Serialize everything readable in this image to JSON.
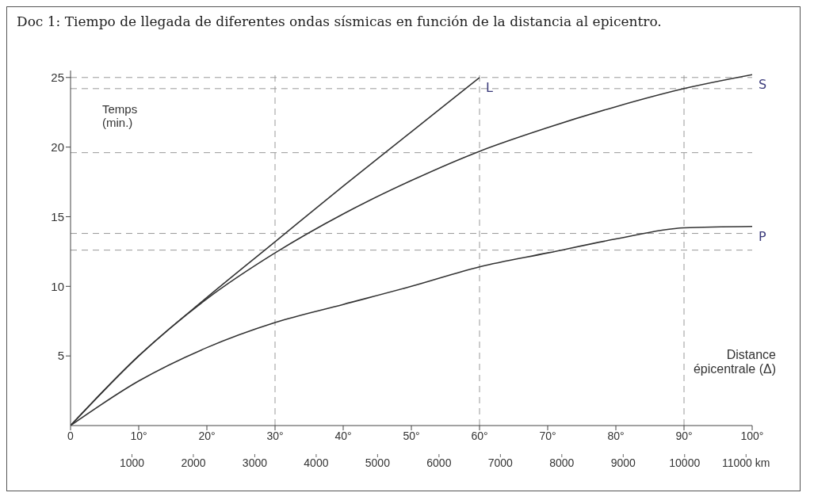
{
  "chart_data": {
    "type": "line",
    "title": "Doc 1: Tiempo de llegada de diferentes ondas sísmicas en función de la distancia al epicentro.",
    "ylabel": "Temps (min.)",
    "xlabel": "Distance épicentrale (Δ)",
    "x": [
      0,
      10,
      20,
      30,
      40,
      50,
      60,
      70,
      80,
      90,
      100
    ],
    "series": [
      {
        "name": "L",
        "color": "#333333",
        "x": [
          0,
          10,
          20,
          30,
          40,
          50,
          60
        ],
        "values": [
          0,
          5.0,
          9.2,
          13.2,
          17.2,
          21.1,
          25
        ]
      },
      {
        "name": "S",
        "color": "#333333",
        "values": [
          0,
          5.0,
          9.1,
          12.4,
          15.2,
          17.6,
          19.7,
          21.4,
          22.9,
          24.2,
          25.2
        ]
      },
      {
        "name": "P",
        "color": "#333333",
        "values": [
          0,
          3.2,
          5.6,
          7.4,
          8.7,
          10,
          11.4,
          12.4,
          13.4,
          14.2,
          14.3
        ]
      }
    ],
    "xlim": [
      0,
      100
    ],
    "xticks": [
      0,
      {
        "value": 10,
        "label": "10°"
      },
      {
        "value": 20,
        "label": "20°"
      },
      {
        "value": 30,
        "label": "30°"
      },
      {
        "value": 40,
        "label": "40°"
      },
      {
        "value": 50,
        "label": "50°"
      },
      {
        "value": 60,
        "label": "60°"
      },
      {
        "value": 70,
        "label": "70°"
      },
      {
        "value": 80,
        "label": "80°"
      },
      {
        "value": 90,
        "label": "90°"
      },
      {
        "value": 100,
        "label": "100°"
      }
    ],
    "x2lim": [
      0,
      11100
    ],
    "x2ticks": [
      1000,
      2000,
      3000,
      4000,
      5000,
      6000,
      7000,
      8000,
      9000,
      10000,
      {
        "value": 11000,
        "label": "11000 km"
      }
    ],
    "ylim": [
      0,
      25.5
    ],
    "yticks": [
      5,
      10,
      15,
      20,
      25
    ],
    "ref_lines": [
      {
        "axis": "x",
        "value": 30,
        "line_style": "dashed",
        "color": "#999999"
      },
      {
        "axis": "x",
        "value": 60,
        "line_style": "dashed",
        "color": "#999999"
      },
      {
        "axis": "x",
        "value": 90,
        "line_style": "dashed",
        "color": "#999999"
      },
      {
        "axis": "y",
        "value": 25,
        "line_style": "dashed",
        "color": "#999999"
      },
      {
        "axis": "y",
        "value": 24.2,
        "line_style": "dashed",
        "color": "#999999"
      },
      {
        "axis": "y",
        "value": 19.6,
        "line_style": "dashed",
        "color": "#999999"
      },
      {
        "axis": "y",
        "value": 13.8,
        "line_style": "dashed",
        "color": "#999999"
      },
      {
        "axis": "y",
        "value": 12.6,
        "line_style": "dashed",
        "color": "#999999"
      }
    ],
    "grid": false,
    "legend": false,
    "marker": "none",
    "line_style": "solid"
  }
}
